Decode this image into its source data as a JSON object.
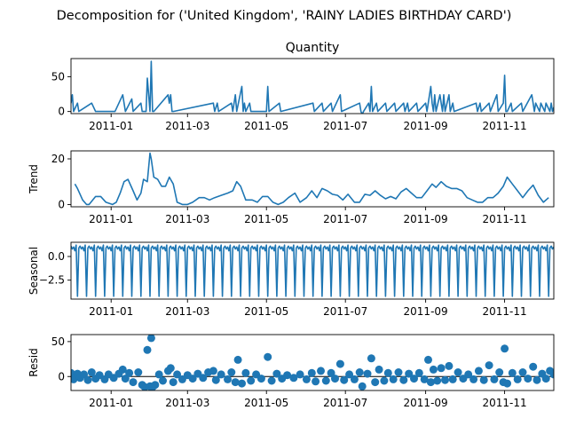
{
  "figure": {
    "suptitle": "Decomposition for ('United Kingdom', 'RAINY LADIES BIRTHDAY CARD')"
  },
  "colors": {
    "series": "#1f77b4",
    "axis": "#000000",
    "background": "#ffffff"
  },
  "chart_data": [
    {
      "type": "line",
      "title": "Quantity",
      "ylabel": "",
      "ylim": [
        -3,
        76
      ],
      "yticks": [
        0,
        50
      ],
      "ytick_labels": [
        "0",
        "50"
      ],
      "xtick_labels": [
        "2011-01",
        "2011-03",
        "2011-05",
        "2011-07",
        "2011-09",
        "2011-11"
      ],
      "x_start": "2010-12-01",
      "x_end": "2011-12-09",
      "grid": false,
      "legend": "none",
      "series": [
        {
          "x": [
            "2010-12-01",
            "2010-12-02",
            "2010-12-03",
            "2010-12-06",
            "2010-12-07",
            "2010-12-17",
            "2010-12-20",
            "2010-12-21",
            "2011-01-04",
            "2011-01-10",
            "2011-01-11",
            "2011-01-12",
            "2011-01-17",
            "2011-01-18",
            "2011-01-24",
            "2011-01-25",
            "2011-01-28",
            "2011-01-29",
            "2011-01-31",
            "2011-02-01",
            "2011-02-02",
            "2011-02-03",
            "2011-02-14",
            "2011-02-15",
            "2011-02-16",
            "2011-02-17",
            "2011-02-18",
            "2011-03-21",
            "2011-03-22",
            "2011-03-24",
            "2011-03-25",
            "2011-04-04",
            "2011-04-05",
            "2011-04-07",
            "2011-04-08",
            "2011-04-12",
            "2011-04-13",
            "2011-04-14",
            "2011-04-15",
            "2011-04-18",
            "2011-04-19",
            "2011-05-01",
            "2011-05-02",
            "2011-05-03",
            "2011-05-11",
            "2011-05-12",
            "2011-06-06",
            "2011-06-07",
            "2011-06-13",
            "2011-06-14",
            "2011-06-20",
            "2011-06-21",
            "2011-06-27",
            "2011-06-28",
            "2011-07-12",
            "2011-07-13",
            "2011-07-14",
            "2011-07-15",
            "2011-07-19",
            "2011-07-20",
            "2011-07-21",
            "2011-07-22",
            "2011-07-25",
            "2011-07-26",
            "2011-08-01",
            "2011-08-02",
            "2011-08-08",
            "2011-08-09",
            "2011-08-15",
            "2011-08-16",
            "2011-08-18",
            "2011-08-19",
            "2011-08-25",
            "2011-08-26",
            "2011-09-01",
            "2011-09-02",
            "2011-09-05",
            "2011-09-06",
            "2011-09-07",
            "2011-09-08",
            "2011-09-09",
            "2011-09-12",
            "2011-09-13",
            "2011-09-14",
            "2011-09-15",
            "2011-09-16",
            "2011-09-19",
            "2011-09-20",
            "2011-09-22",
            "2011-09-23",
            "2011-10-10",
            "2011-10-11",
            "2011-10-13",
            "2011-10-14",
            "2011-10-20",
            "2011-10-21",
            "2011-10-26",
            "2011-10-27",
            "2011-10-31",
            "2011-11-01",
            "2011-11-02",
            "2011-11-03",
            "2011-11-06",
            "2011-11-07",
            "2011-11-14",
            "2011-11-15",
            "2011-11-22",
            "2011-11-23",
            "2011-11-24",
            "2011-11-25",
            "2011-11-28",
            "2011-11-29",
            "2011-12-02",
            "2011-12-03",
            "2011-12-06",
            "2011-12-07",
            "2011-12-08",
            "2011-12-09"
          ],
          "values": [
            12,
            24,
            0,
            12,
            0,
            12,
            0,
            0,
            0,
            24,
            12,
            0,
            18,
            0,
            12,
            0,
            0,
            48,
            0,
            72,
            0,
            0,
            24,
            12,
            24,
            0,
            0,
            12,
            0,
            12,
            0,
            12,
            0,
            24,
            0,
            36,
            0,
            12,
            0,
            12,
            0,
            0,
            36,
            0,
            12,
            0,
            12,
            0,
            12,
            0,
            12,
            0,
            24,
            0,
            12,
            0,
            -4,
            0,
            12,
            0,
            36,
            0,
            12,
            0,
            12,
            0,
            12,
            0,
            12,
            0,
            12,
            0,
            12,
            0,
            12,
            0,
            36,
            12,
            0,
            24,
            0,
            24,
            12,
            0,
            24,
            0,
            24,
            0,
            12,
            0,
            12,
            0,
            12,
            0,
            12,
            0,
            24,
            0,
            12,
            52,
            0,
            0,
            12,
            0,
            12,
            0,
            24,
            12,
            0,
            12,
            0,
            12,
            0,
            12,
            0,
            12,
            0,
            6
          ]
        }
      ]
    },
    {
      "type": "line",
      "title": "",
      "ylabel": "Trend",
      "ylim": [
        -1,
        23.5
      ],
      "yticks": [
        0,
        20
      ],
      "ytick_labels": [
        "0",
        "20"
      ],
      "xtick_labels": [
        "2011-01",
        "2011-03",
        "2011-05",
        "2011-07",
        "2011-09",
        "2011-11"
      ],
      "x_start": "2010-12-01",
      "x_end": "2011-12-09",
      "grid": false,
      "legend": "none",
      "series": [
        {
          "x": [
            "2010-12-04",
            "2010-12-06",
            "2010-12-10",
            "2010-12-13",
            "2010-12-15",
            "2010-12-20",
            "2010-12-24",
            "2010-12-28",
            "2011-01-02",
            "2011-01-05",
            "2011-01-08",
            "2011-01-11",
            "2011-01-14",
            "2011-01-18",
            "2011-01-21",
            "2011-01-24",
            "2011-01-26",
            "2011-01-29",
            "2011-01-31",
            "2011-02-01",
            "2011-02-03",
            "2011-02-06",
            "2011-02-09",
            "2011-02-12",
            "2011-02-15",
            "2011-02-18",
            "2011-02-21",
            "2011-02-25",
            "2011-03-01",
            "2011-03-05",
            "2011-03-10",
            "2011-03-14",
            "2011-03-18",
            "2011-03-22",
            "2011-03-27",
            "2011-04-01",
            "2011-04-05",
            "2011-04-08",
            "2011-04-11",
            "2011-04-15",
            "2011-04-20",
            "2011-04-24",
            "2011-04-28",
            "2011-05-02",
            "2011-05-06",
            "2011-05-10",
            "2011-05-14",
            "2011-05-18",
            "2011-05-23",
            "2011-05-27",
            "2011-06-01",
            "2011-06-05",
            "2011-06-09",
            "2011-06-13",
            "2011-06-17",
            "2011-06-21",
            "2011-06-25",
            "2011-06-29",
            "2011-07-03",
            "2011-07-08",
            "2011-07-12",
            "2011-07-16",
            "2011-07-20",
            "2011-07-24",
            "2011-07-28",
            "2011-08-01",
            "2011-08-05",
            "2011-08-09",
            "2011-08-13",
            "2011-08-17",
            "2011-08-21",
            "2011-08-25",
            "2011-08-29",
            "2011-09-02",
            "2011-09-06",
            "2011-09-09",
            "2011-09-13",
            "2011-09-17",
            "2011-09-21",
            "2011-09-25",
            "2011-09-29",
            "2011-10-03",
            "2011-10-07",
            "2011-10-11",
            "2011-10-15",
            "2011-10-19",
            "2011-10-23",
            "2011-10-27",
            "2011-10-31",
            "2011-11-03",
            "2011-11-07",
            "2011-11-11",
            "2011-11-15",
            "2011-11-19",
            "2011-11-23",
            "2011-11-27",
            "2011-12-01",
            "2011-12-05"
          ],
          "values": [
            9,
            7,
            2,
            0,
            0,
            3.5,
            3.5,
            1,
            0,
            1,
            5,
            10,
            11,
            6,
            2,
            5,
            11,
            10,
            22.5,
            20,
            12,
            11,
            8,
            8,
            12,
            9,
            1,
            0,
            0,
            1,
            3,
            3,
            2,
            3,
            4,
            5,
            6,
            10,
            8,
            2,
            2,
            1,
            3.5,
            3.5,
            1,
            0,
            1,
            3,
            5,
            1,
            3,
            6,
            3,
            7,
            6,
            4.5,
            4,
            2,
            4.5,
            1,
            1,
            4.5,
            4,
            6,
            4,
            2.5,
            3.5,
            2.5,
            5.5,
            7,
            5,
            3,
            3,
            6,
            9,
            7.5,
            10,
            8,
            7,
            7,
            6,
            3,
            2,
            1,
            1,
            3,
            3,
            5,
            8,
            12,
            9,
            6,
            3,
            6,
            8.5,
            4,
            1,
            3
          ]
        }
      ]
    },
    {
      "type": "line",
      "title": "",
      "ylabel": "Seasonal",
      "ylim": [
        -4.5,
        1.5
      ],
      "yticks": [
        -2.5,
        0
      ],
      "ytick_labels": [
        "−2.5",
        "0.0"
      ],
      "xtick_labels": [
        "2011-01",
        "2011-03",
        "2011-05",
        "2011-07",
        "2011-09",
        "2011-11"
      ],
      "x_start": "2010-12-01",
      "x_end": "2011-12-09",
      "grid": false,
      "legend": "none",
      "period_days": 7,
      "pattern": [
        1.1,
        0.8,
        1.0,
        0.6,
        1.2,
        -4.2,
        0.9
      ],
      "series": [
        {
          "x_start": "2010-12-01",
          "x_end": "2011-12-09",
          "note_pattern": "weekly cycle"
        }
      ]
    },
    {
      "type": "scatter",
      "title": "",
      "ylabel": "Resid",
      "ylim": [
        -20,
        60
      ],
      "yticks": [
        0,
        50
      ],
      "ytick_labels": [
        "0",
        "50"
      ],
      "xtick_labels": [
        "2011-01",
        "2011-03",
        "2011-05",
        "2011-07",
        "2011-09",
        "2011-11"
      ],
      "x_start": "2010-12-01",
      "x_end": "2011-12-09",
      "grid": false,
      "legend": "none",
      "points": [
        [
          "2010-12-01",
          5
        ],
        [
          "2010-12-03",
          -4
        ],
        [
          "2010-12-06",
          4
        ],
        [
          "2010-12-08",
          -2
        ],
        [
          "2010-12-11",
          3
        ],
        [
          "2010-12-14",
          -5
        ],
        [
          "2010-12-17",
          6
        ],
        [
          "2010-12-20",
          -3
        ],
        [
          "2010-12-23",
          2
        ],
        [
          "2010-12-27",
          -4
        ],
        [
          "2010-12-30",
          3
        ],
        [
          "2011-01-03",
          -2
        ],
        [
          "2011-01-07",
          4
        ],
        [
          "2011-01-10",
          10
        ],
        [
          "2011-01-12",
          -3
        ],
        [
          "2011-01-15",
          5
        ],
        [
          "2011-01-18",
          -8
        ],
        [
          "2011-01-22",
          6
        ],
        [
          "2011-01-25",
          -12
        ],
        [
          "2011-01-27",
          -15
        ],
        [
          "2011-01-29",
          38
        ],
        [
          "2011-01-31",
          -14
        ],
        [
          "2011-02-01",
          55
        ],
        [
          "2011-02-02",
          -15
        ],
        [
          "2011-02-04",
          -12
        ],
        [
          "2011-02-07",
          3
        ],
        [
          "2011-02-10",
          -6
        ],
        [
          "2011-02-14",
          8
        ],
        [
          "2011-02-16",
          12
        ],
        [
          "2011-02-18",
          -8
        ],
        [
          "2011-02-21",
          3
        ],
        [
          "2011-02-25",
          -4
        ],
        [
          "2011-03-01",
          2
        ],
        [
          "2011-03-05",
          -3
        ],
        [
          "2011-03-09",
          4
        ],
        [
          "2011-03-13",
          -2
        ],
        [
          "2011-03-17",
          6
        ],
        [
          "2011-03-21",
          8
        ],
        [
          "2011-03-23",
          -5
        ],
        [
          "2011-03-27",
          3
        ],
        [
          "2011-04-01",
          -4
        ],
        [
          "2011-04-04",
          6
        ],
        [
          "2011-04-07",
          -8
        ],
        [
          "2011-04-09",
          24
        ],
        [
          "2011-04-12",
          -10
        ],
        [
          "2011-04-15",
          5
        ],
        [
          "2011-04-19",
          -6
        ],
        [
          "2011-04-23",
          3
        ],
        [
          "2011-04-27",
          -3
        ],
        [
          "2011-05-02",
          28
        ],
        [
          "2011-05-05",
          -6
        ],
        [
          "2011-05-09",
          4
        ],
        [
          "2011-05-13",
          -3
        ],
        [
          "2011-05-17",
          2
        ],
        [
          "2011-05-22",
          -2
        ],
        [
          "2011-05-27",
          3
        ],
        [
          "2011-06-01",
          -4
        ],
        [
          "2011-06-05",
          5
        ],
        [
          "2011-06-08",
          -7
        ],
        [
          "2011-06-12",
          8
        ],
        [
          "2011-06-16",
          -6
        ],
        [
          "2011-06-20",
          5
        ],
        [
          "2011-06-23",
          -3
        ],
        [
          "2011-06-27",
          18
        ],
        [
          "2011-06-30",
          -5
        ],
        [
          "2011-07-04",
          3
        ],
        [
          "2011-07-08",
          -4
        ],
        [
          "2011-07-12",
          6
        ],
        [
          "2011-07-14",
          -14
        ],
        [
          "2011-07-18",
          4
        ],
        [
          "2011-07-21",
          26
        ],
        [
          "2011-07-24",
          -8
        ],
        [
          "2011-07-27",
          10
        ],
        [
          "2011-07-31",
          -6
        ],
        [
          "2011-08-03",
          5
        ],
        [
          "2011-08-07",
          -4
        ],
        [
          "2011-08-11",
          6
        ],
        [
          "2011-08-15",
          -5
        ],
        [
          "2011-08-19",
          4
        ],
        [
          "2011-08-23",
          -3
        ],
        [
          "2011-08-27",
          5
        ],
        [
          "2011-08-31",
          -4
        ],
        [
          "2011-09-03",
          24
        ],
        [
          "2011-09-05",
          -8
        ],
        [
          "2011-09-07",
          10
        ],
        [
          "2011-09-10",
          -6
        ],
        [
          "2011-09-13",
          12
        ],
        [
          "2011-09-16",
          -5
        ],
        [
          "2011-09-19",
          15
        ],
        [
          "2011-09-22",
          -4
        ],
        [
          "2011-09-26",
          6
        ],
        [
          "2011-09-30",
          -3
        ],
        [
          "2011-10-04",
          3
        ],
        [
          "2011-10-08",
          -4
        ],
        [
          "2011-10-12",
          8
        ],
        [
          "2011-10-16",
          -5
        ],
        [
          "2011-10-20",
          16
        ],
        [
          "2011-10-24",
          -4
        ],
        [
          "2011-10-28",
          6
        ],
        [
          "2011-10-31",
          -8
        ],
        [
          "2011-11-01",
          40
        ],
        [
          "2011-11-03",
          -10
        ],
        [
          "2011-11-07",
          5
        ],
        [
          "2011-11-11",
          -4
        ],
        [
          "2011-11-15",
          6
        ],
        [
          "2011-11-19",
          -3
        ],
        [
          "2011-11-23",
          14
        ],
        [
          "2011-11-26",
          -5
        ],
        [
          "2011-11-30",
          4
        ],
        [
          "2011-12-03",
          -3
        ],
        [
          "2011-12-06",
          8
        ],
        [
          "2011-12-09",
          3
        ]
      ]
    }
  ]
}
